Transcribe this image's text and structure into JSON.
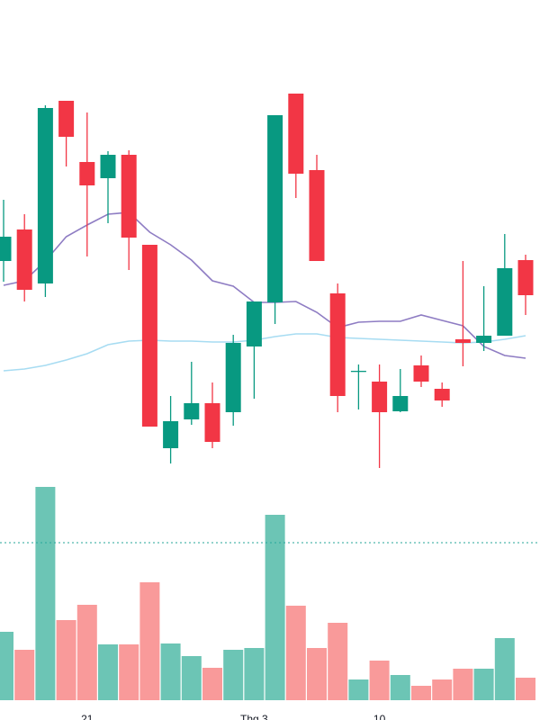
{
  "chart_data": {
    "type": "candlestick",
    "categories": [
      null,
      null,
      null,
      null,
      "21",
      null,
      null,
      null,
      null,
      null,
      null,
      null,
      "Thg 3",
      null,
      null,
      null,
      null,
      null,
      "10",
      null,
      null,
      null,
      null,
      null,
      null,
      null
    ],
    "open": [
      270,
      305,
      245,
      448,
      380,
      362,
      388,
      288,
      62,
      94,
      112,
      102,
      175,
      224,
      456,
      371,
      234,
      147,
      136,
      103,
      154,
      128,
      183,
      179,
      187,
      271
    ],
    "high": [
      338,
      322,
      443,
      448,
      435,
      392,
      393,
      288,
      120,
      158,
      135,
      188,
      225,
      432,
      456,
      388,
      245,
      155,
      155,
      150,
      165,
      135,
      270,
      242,
      300,
      277
    ],
    "low": [
      247,
      225,
      230,
      375,
      275,
      312,
      260,
      86,
      45,
      88,
      62,
      87,
      117,
      200,
      340,
      270,
      102,
      105,
      40,
      102,
      130,
      108,
      153,
      170,
      187,
      210
    ],
    "close": [
      297,
      238,
      440,
      408,
      354,
      388,
      296,
      86,
      92,
      112,
      69,
      179,
      225,
      432,
      367,
      270,
      120,
      148,
      102,
      120,
      136,
      115,
      179,
      187,
      262,
      232
    ],
    "up_color": "#089981",
    "down_color": "#f23645",
    "ylim": [
      0,
      560
    ],
    "ma_lines": [
      {
        "color": "#8e7cc3",
        "values": [
          243,
          248,
          270,
          297,
          310,
          322,
          324,
          302,
          288,
          271,
          248,
          242,
          224,
          224,
          225,
          213,
          196,
          202,
          203,
          203,
          210,
          204,
          198,
          175,
          165,
          162
        ]
      },
      {
        "color": "#a7dcf2",
        "values": [
          148,
          150,
          154,
          160,
          167,
          177,
          181,
          182,
          181,
          181,
          180,
          180,
          182,
          186,
          189,
          189,
          185,
          184,
          183,
          182,
          181,
          180,
          179,
          180,
          183,
          187
        ]
      }
    ],
    "volume": {
      "values": [
        76,
        56,
        237,
        89,
        106,
        62,
        62,
        131,
        63,
        49,
        36,
        56,
        58,
        206,
        105,
        58,
        86,
        23,
        44,
        28,
        16,
        23,
        35,
        35,
        69,
        25
      ],
      "up_color": "#6cc5b5",
      "down_color": "#f99a9a",
      "ylim": [
        0,
        300
      ],
      "reference_line": 175
    }
  }
}
